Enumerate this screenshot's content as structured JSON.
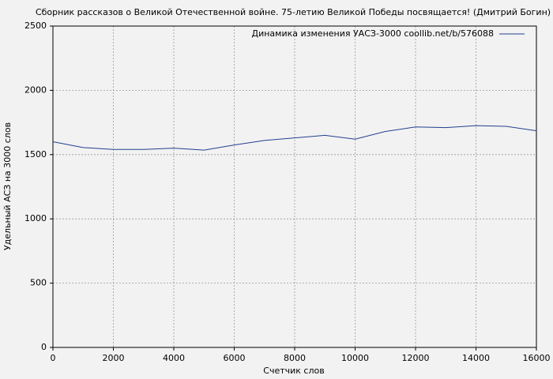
{
  "chart_data": {
    "type": "line",
    "title": "Сборник рассказов о Великой Отечественной войне. 75-летию Великой Победы посвящается! (Дмитрий Богин)",
    "x_label": "Счетчик слов",
    "y_label": "Удельный АСЗ на 3000 слов",
    "x": [
      0,
      1000,
      2000,
      3000,
      4000,
      5000,
      6000,
      7000,
      8000,
      9000,
      10000,
      11000,
      12000,
      13000,
      14000,
      15000,
      16000
    ],
    "series": [
      {
        "name": "Динамика изменения УАСЗ-3000 coollib.net/b/576088",
        "color": "#23408e",
        "values": [
          1600,
          1555,
          1540,
          1540,
          1550,
          1535,
          1575,
          1610,
          1630,
          1650,
          1620,
          1680,
          1715,
          1710,
          1725,
          1720,
          1685
        ]
      }
    ],
    "xlim": [
      0,
      16000
    ],
    "xticks": [
      0,
      2000,
      4000,
      6000,
      8000,
      10000,
      12000,
      14000,
      16000
    ],
    "ylim": [
      0,
      2500
    ],
    "yticks": [
      0,
      500,
      1000,
      1500,
      2000,
      2500
    ],
    "grid": true,
    "legend": "upper right"
  }
}
